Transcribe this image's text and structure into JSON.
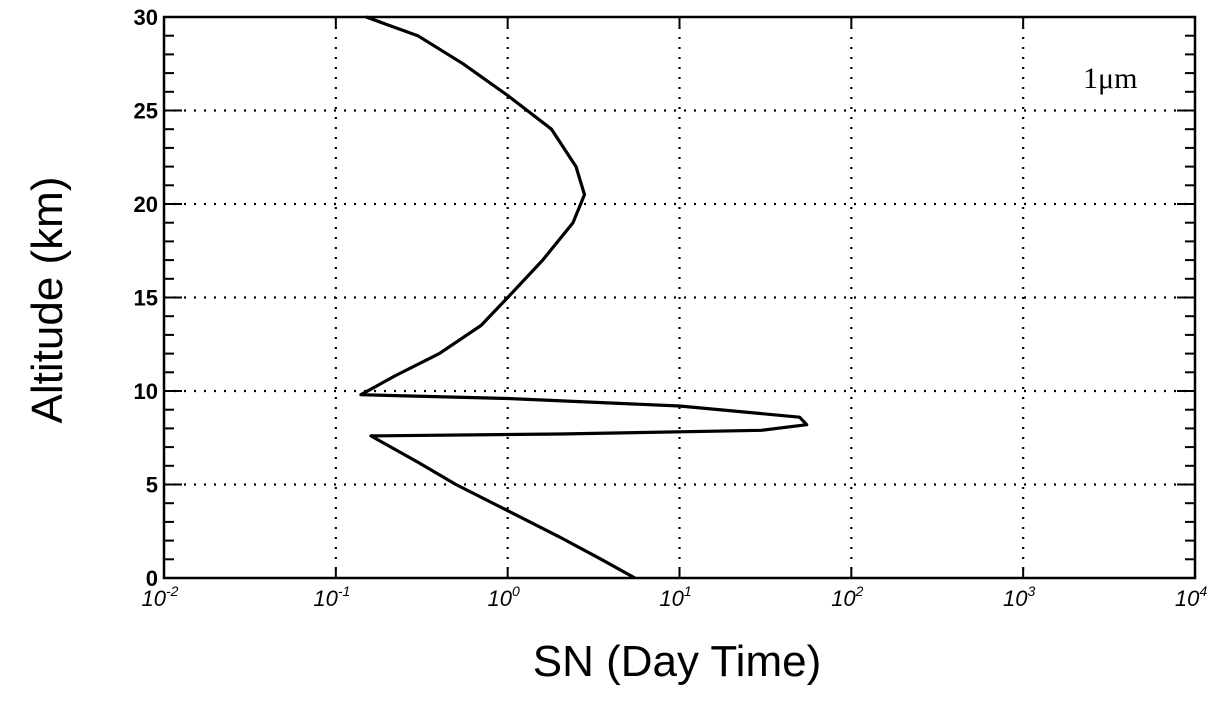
{
  "chart_data": {
    "type": "line",
    "title": "",
    "xlabel": "SN (Day Time)",
    "ylabel": "Altitude (km)",
    "xscale": "log",
    "xlim": [
      0.01,
      10000
    ],
    "ylim": [
      0,
      30
    ],
    "grid": true,
    "grid_style": "dotted",
    "x_ticks": [
      {
        "value": 0.01,
        "base": "10",
        "exp": "-2"
      },
      {
        "value": 0.1,
        "base": "10",
        "exp": "-1"
      },
      {
        "value": 1,
        "base": "10",
        "exp": "0"
      },
      {
        "value": 10,
        "base": "10",
        "exp": "1"
      },
      {
        "value": 100,
        "base": "10",
        "exp": "2"
      },
      {
        "value": 1000,
        "base": "10",
        "exp": "3"
      },
      {
        "value": 10000,
        "base": "10",
        "exp": "4"
      }
    ],
    "y_ticks": [
      0,
      5,
      10,
      15,
      20,
      25,
      30
    ],
    "annotation": "1μm",
    "series": [
      {
        "color": "#000000",
        "points": [
          {
            "x": 5.5,
            "y": 0
          },
          {
            "x": 3.5,
            "y": 1
          },
          {
            "x": 2.0,
            "y": 2.2
          },
          {
            "x": 1.0,
            "y": 3.6
          },
          {
            "x": 0.5,
            "y": 5.0
          },
          {
            "x": 0.3,
            "y": 6.2
          },
          {
            "x": 0.16,
            "y": 7.6
          },
          {
            "x": 2.0,
            "y": 7.7
          },
          {
            "x": 30,
            "y": 7.9
          },
          {
            "x": 55,
            "y": 8.2
          },
          {
            "x": 50,
            "y": 8.6
          },
          {
            "x": 10,
            "y": 9.2
          },
          {
            "x": 1.0,
            "y": 9.6
          },
          {
            "x": 0.14,
            "y": 9.8
          },
          {
            "x": 0.22,
            "y": 10.8
          },
          {
            "x": 0.4,
            "y": 12.0
          },
          {
            "x": 0.7,
            "y": 13.5
          },
          {
            "x": 1.0,
            "y": 15.0
          },
          {
            "x": 1.6,
            "y": 17.0
          },
          {
            "x": 2.4,
            "y": 19.0
          },
          {
            "x": 2.8,
            "y": 20.5
          },
          {
            "x": 2.5,
            "y": 22.0
          },
          {
            "x": 1.8,
            "y": 24.0
          },
          {
            "x": 1.0,
            "y": 25.8
          },
          {
            "x": 0.55,
            "y": 27.5
          },
          {
            "x": 0.3,
            "y": 29.0
          },
          {
            "x": 0.15,
            "y": 30.0
          }
        ]
      }
    ]
  }
}
